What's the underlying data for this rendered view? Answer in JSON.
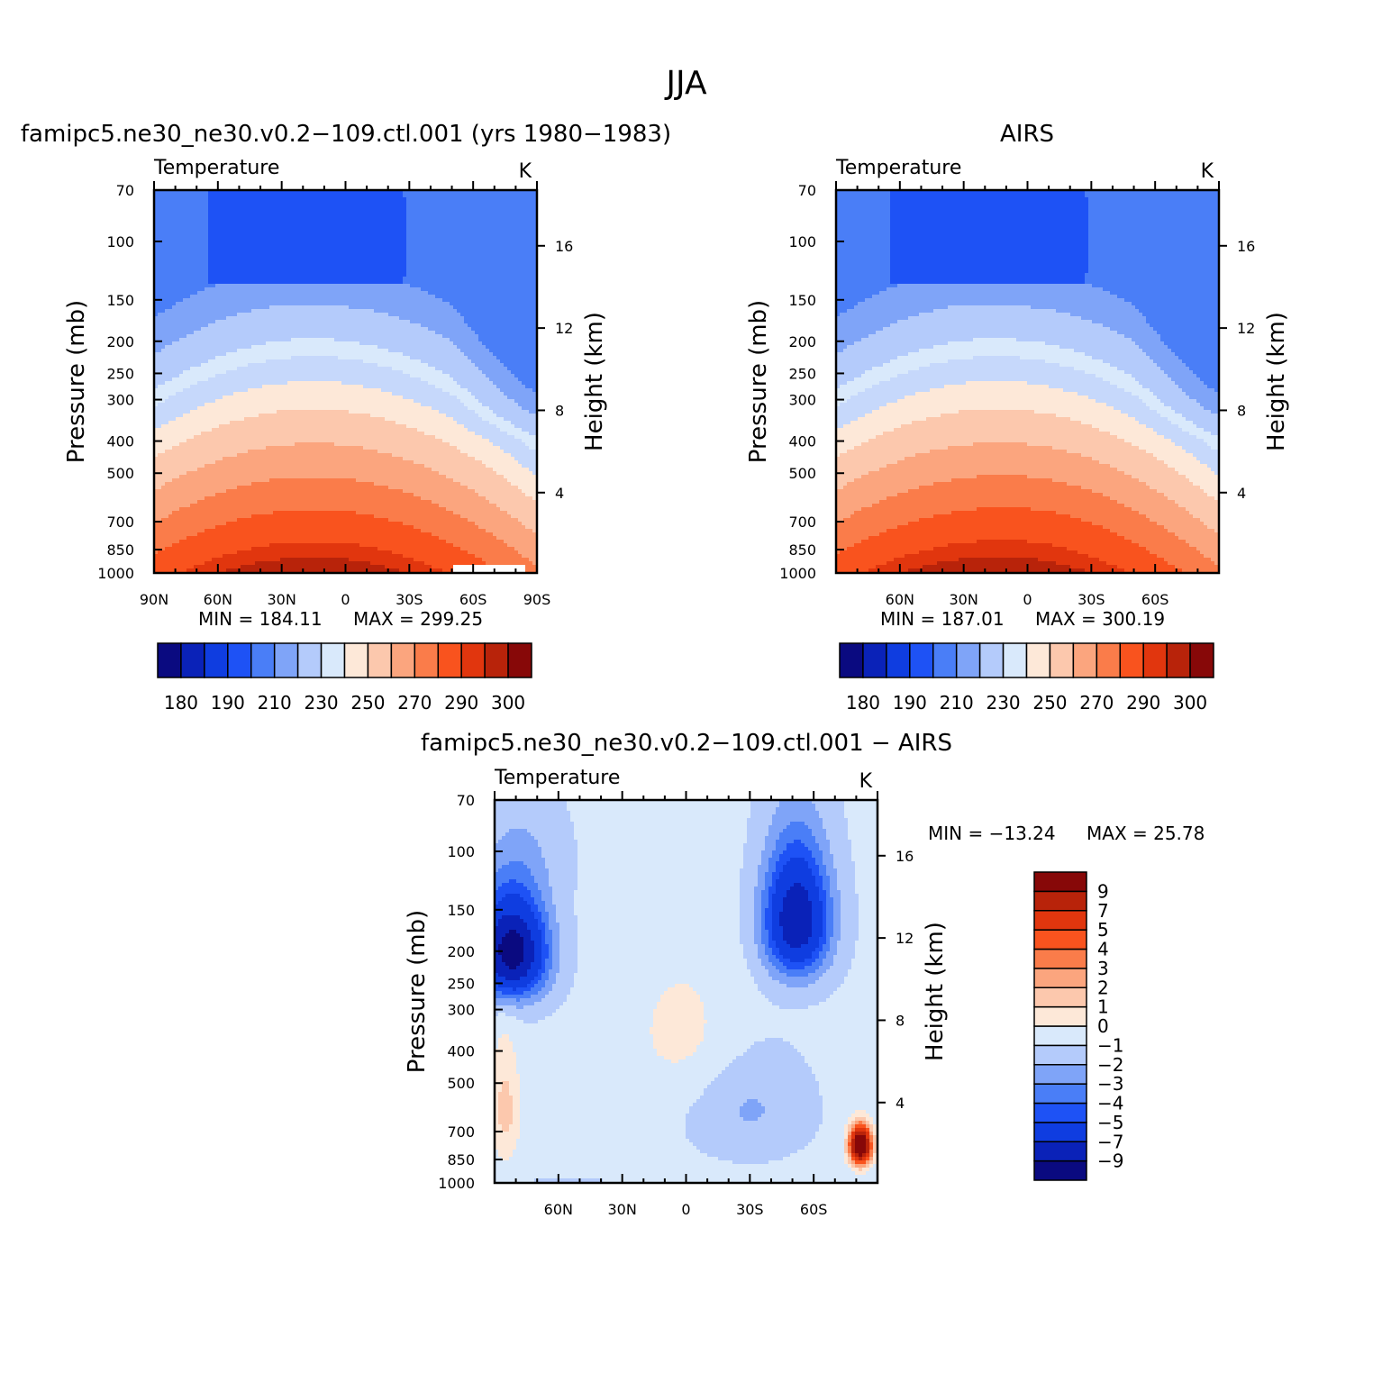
{
  "figure": {
    "title": "JJA"
  },
  "palette": {
    "colors": [
      "#0a0a80",
      "#0a22b8",
      "#0f3de0",
      "#1e52f5",
      "#4a7ef7",
      "#7fa4f8",
      "#b4cbfb",
      "#d9e9fb",
      "#fde8d8",
      "#fcc8ad",
      "#fba57e",
      "#fa7c4a",
      "#f9531e",
      "#e1360e",
      "#b8230a",
      "#870808"
    ],
    "cross_bin_color": "#c6d8fb"
  },
  "chart_data": [
    {
      "type": "heatmap",
      "panel": "model",
      "title": "famipc5.ne30_ne30.v0.2−109.ctl.001 (yrs 1980−1983)",
      "label_left": "Temperature",
      "units": "K",
      "ylabel": "Pressure (mb)",
      "ylabel_right": "Height (km)",
      "x_ticks": [
        "90N",
        "60N",
        "30N",
        "0",
        "30S",
        "60S",
        "90S"
      ],
      "x_tick_values": [
        90,
        60,
        30,
        0,
        -30,
        -60,
        -90
      ],
      "x_range": [
        90,
        -90
      ],
      "y_ticks": [
        "70",
        "100",
        "150",
        "200",
        "250",
        "300",
        "400",
        "500",
        "700",
        "850",
        "1000"
      ],
      "y_tick_values": [
        70,
        100,
        150,
        200,
        250,
        300,
        400,
        500,
        700,
        850,
        1000
      ],
      "y_range": [
        70,
        1000
      ],
      "y_scale": "log",
      "y2_ticks": [
        "4",
        "8",
        "12",
        "16"
      ],
      "y2_tick_values": [
        4,
        8,
        12,
        16
      ],
      "min_label": "MIN = 184.11",
      "max_label": "MAX = 299.25",
      "colorbar": {
        "orientation": "horizontal",
        "levels": [
          180,
          185,
          190,
          200,
          210,
          220,
          230,
          240,
          250,
          260,
          270,
          280,
          290,
          295,
          300
        ],
        "labels": [
          "180",
          "190",
          "210",
          "230",
          "250",
          "270",
          "290",
          "300"
        ]
      }
    },
    {
      "type": "heatmap",
      "panel": "obs",
      "title": "AIRS",
      "label_left": "Temperature",
      "units": "K",
      "ylabel": "Pressure (mb)",
      "ylabel_right": "Height (km)",
      "x_ticks": [
        "60N",
        "30N",
        "0",
        "30S",
        "60S"
      ],
      "x_tick_values": [
        60,
        30,
        0,
        -30,
        -60
      ],
      "x_range": [
        90,
        -90
      ],
      "y_ticks": [
        "70",
        "100",
        "150",
        "200",
        "250",
        "300",
        "400",
        "500",
        "700",
        "850",
        "1000"
      ],
      "y_tick_values": [
        70,
        100,
        150,
        200,
        250,
        300,
        400,
        500,
        700,
        850,
        1000
      ],
      "y_range": [
        70,
        1000
      ],
      "y_scale": "log",
      "y2_ticks": [
        "4",
        "8",
        "12",
        "16"
      ],
      "y2_tick_values": [
        4,
        8,
        12,
        16
      ],
      "min_label": "MIN = 187.01",
      "max_label": "MAX = 300.19",
      "colorbar": {
        "orientation": "horizontal",
        "levels": [
          180,
          185,
          190,
          200,
          210,
          220,
          230,
          240,
          250,
          260,
          270,
          280,
          290,
          295,
          300
        ],
        "labels": [
          "180",
          "190",
          "210",
          "230",
          "250",
          "270",
          "290",
          "300"
        ]
      }
    },
    {
      "type": "heatmap",
      "panel": "diff",
      "title": "famipc5.ne30_ne30.v0.2−109.ctl.001 − AIRS",
      "label_left": "Temperature",
      "units": "K",
      "ylabel": "Pressure (mb)",
      "ylabel_right": "Height (km)",
      "x_ticks": [
        "60N",
        "30N",
        "0",
        "30S",
        "60S"
      ],
      "x_tick_values": [
        60,
        30,
        0,
        -30,
        -60
      ],
      "x_range": [
        90,
        -90
      ],
      "y_ticks": [
        "70",
        "100",
        "150",
        "200",
        "250",
        "300",
        "400",
        "500",
        "700",
        "850",
        "1000"
      ],
      "y_tick_values": [
        70,
        100,
        150,
        200,
        250,
        300,
        400,
        500,
        700,
        850,
        1000
      ],
      "y_range": [
        70,
        1000
      ],
      "y_scale": "log",
      "y2_ticks": [
        "4",
        "8",
        "12",
        "16"
      ],
      "y2_tick_values": [
        4,
        8,
        12,
        16
      ],
      "min_label": "MIN = −13.24",
      "max_label": "MAX = 25.78",
      "colorbar": {
        "orientation": "vertical",
        "levels": [
          -9,
          -7,
          -5,
          -4,
          -3,
          -2,
          -1,
          0,
          1,
          2,
          3,
          4,
          5,
          7,
          9
        ],
        "labels": [
          "−9",
          "−7",
          "−5",
          "−4",
          "−3",
          "−2",
          "−1",
          "0",
          "1",
          "2",
          "3",
          "4",
          "5",
          "7",
          "9"
        ]
      }
    }
  ]
}
